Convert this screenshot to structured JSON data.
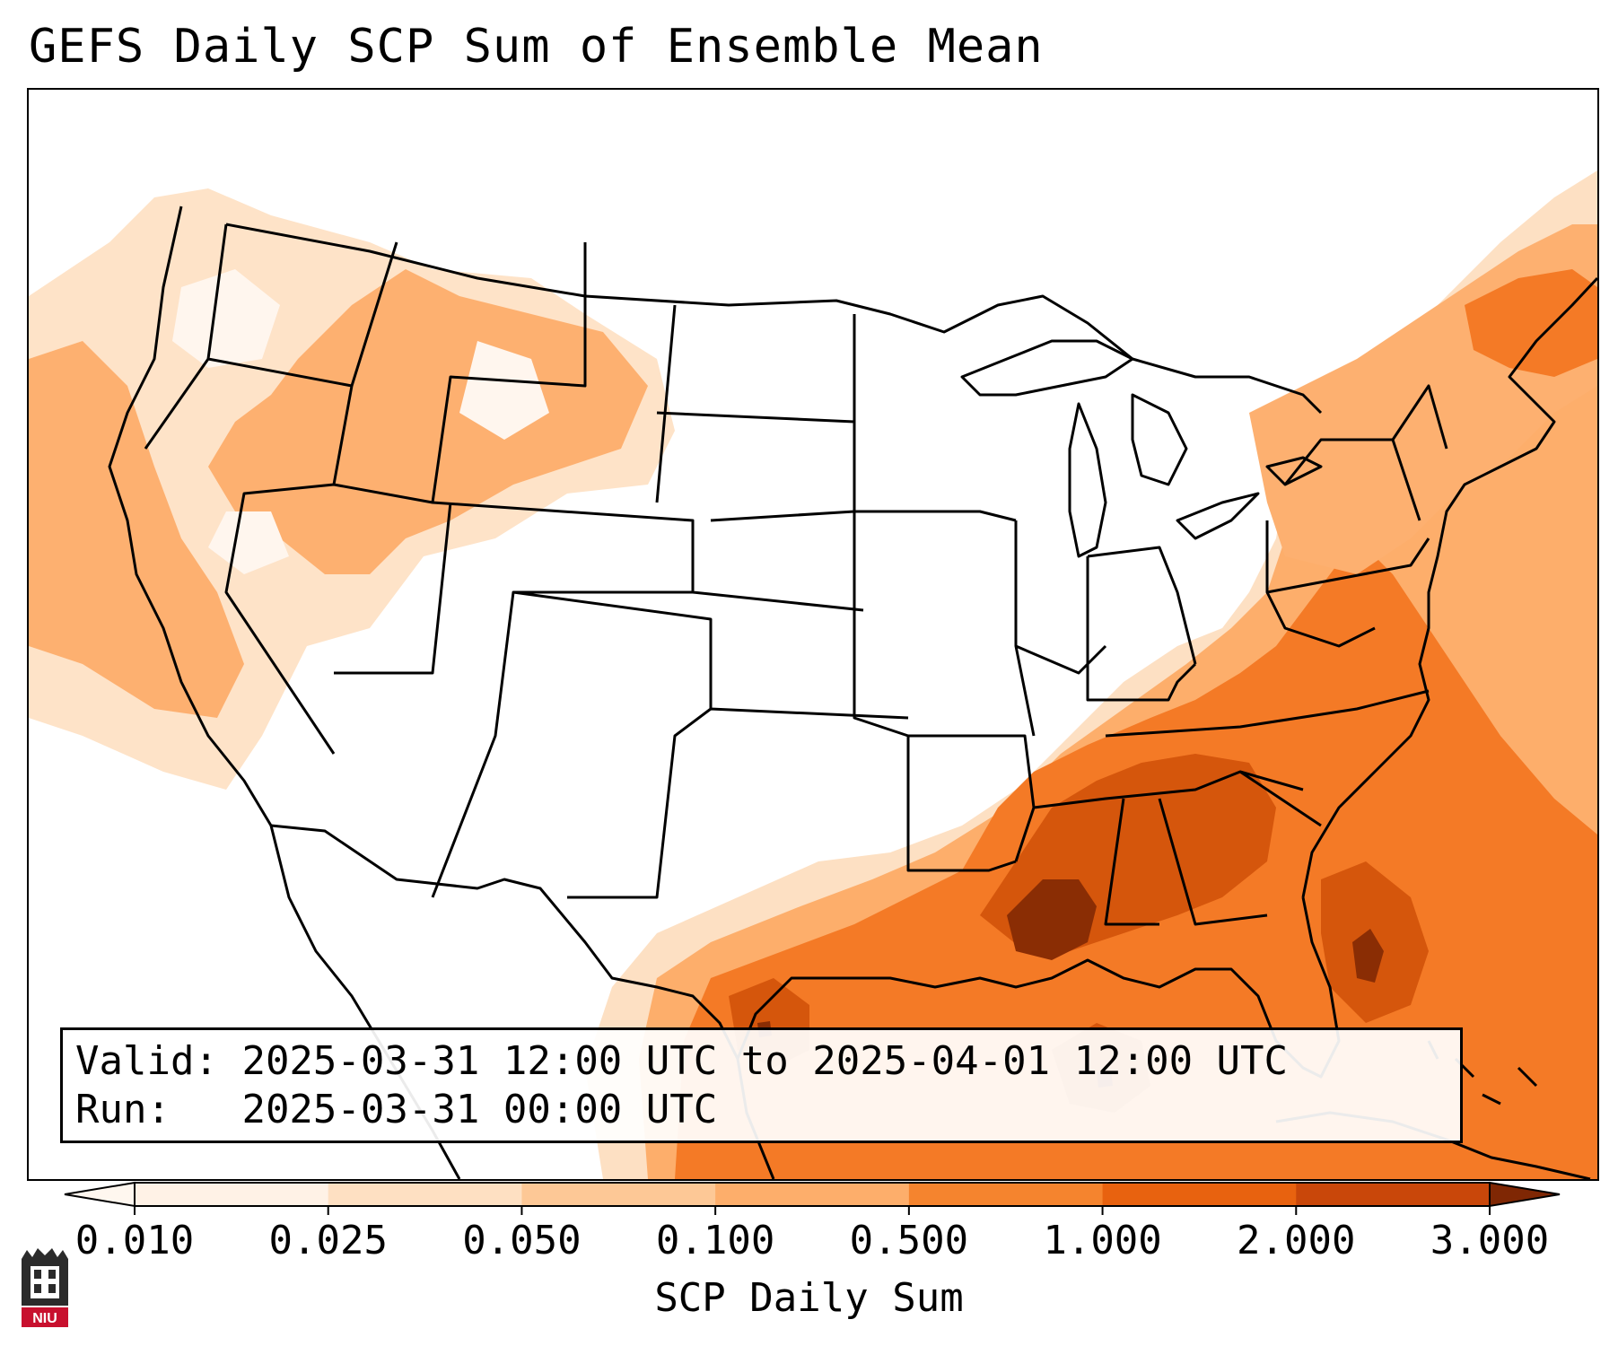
{
  "title": "GEFS Daily SCP Sum of Ensemble Mean",
  "info": {
    "valid_label": "Valid:",
    "valid_value": "2025-03-31 12:00 UTC to 2025-04-01 12:00 UTC",
    "run_label": "Run:",
    "run_value": "2025-03-31 00:00 UTC"
  },
  "colorbar": {
    "label": "SCP Daily Sum",
    "ticks": [
      "0.010",
      "0.025",
      "0.050",
      "0.100",
      "0.500",
      "1.000",
      "2.000",
      "3.000"
    ],
    "colors": [
      "#fff2e6",
      "#fee0c2",
      "#fdc896",
      "#fdae6b",
      "#f5842e",
      "#e8620f",
      "#c9470a"
    ],
    "extend_low_color": "#fff7ef",
    "extend_high_color": "#7f2704"
  },
  "logo": {
    "text": "NIU",
    "name": "niu-logo"
  },
  "map": {
    "region": "Continental United States",
    "field_colors": {
      "light": "#fde0c3",
      "medium": "#fdb06d",
      "orange": "#f47a26",
      "deep": "#d5560c",
      "max": "#8a2d04"
    }
  }
}
